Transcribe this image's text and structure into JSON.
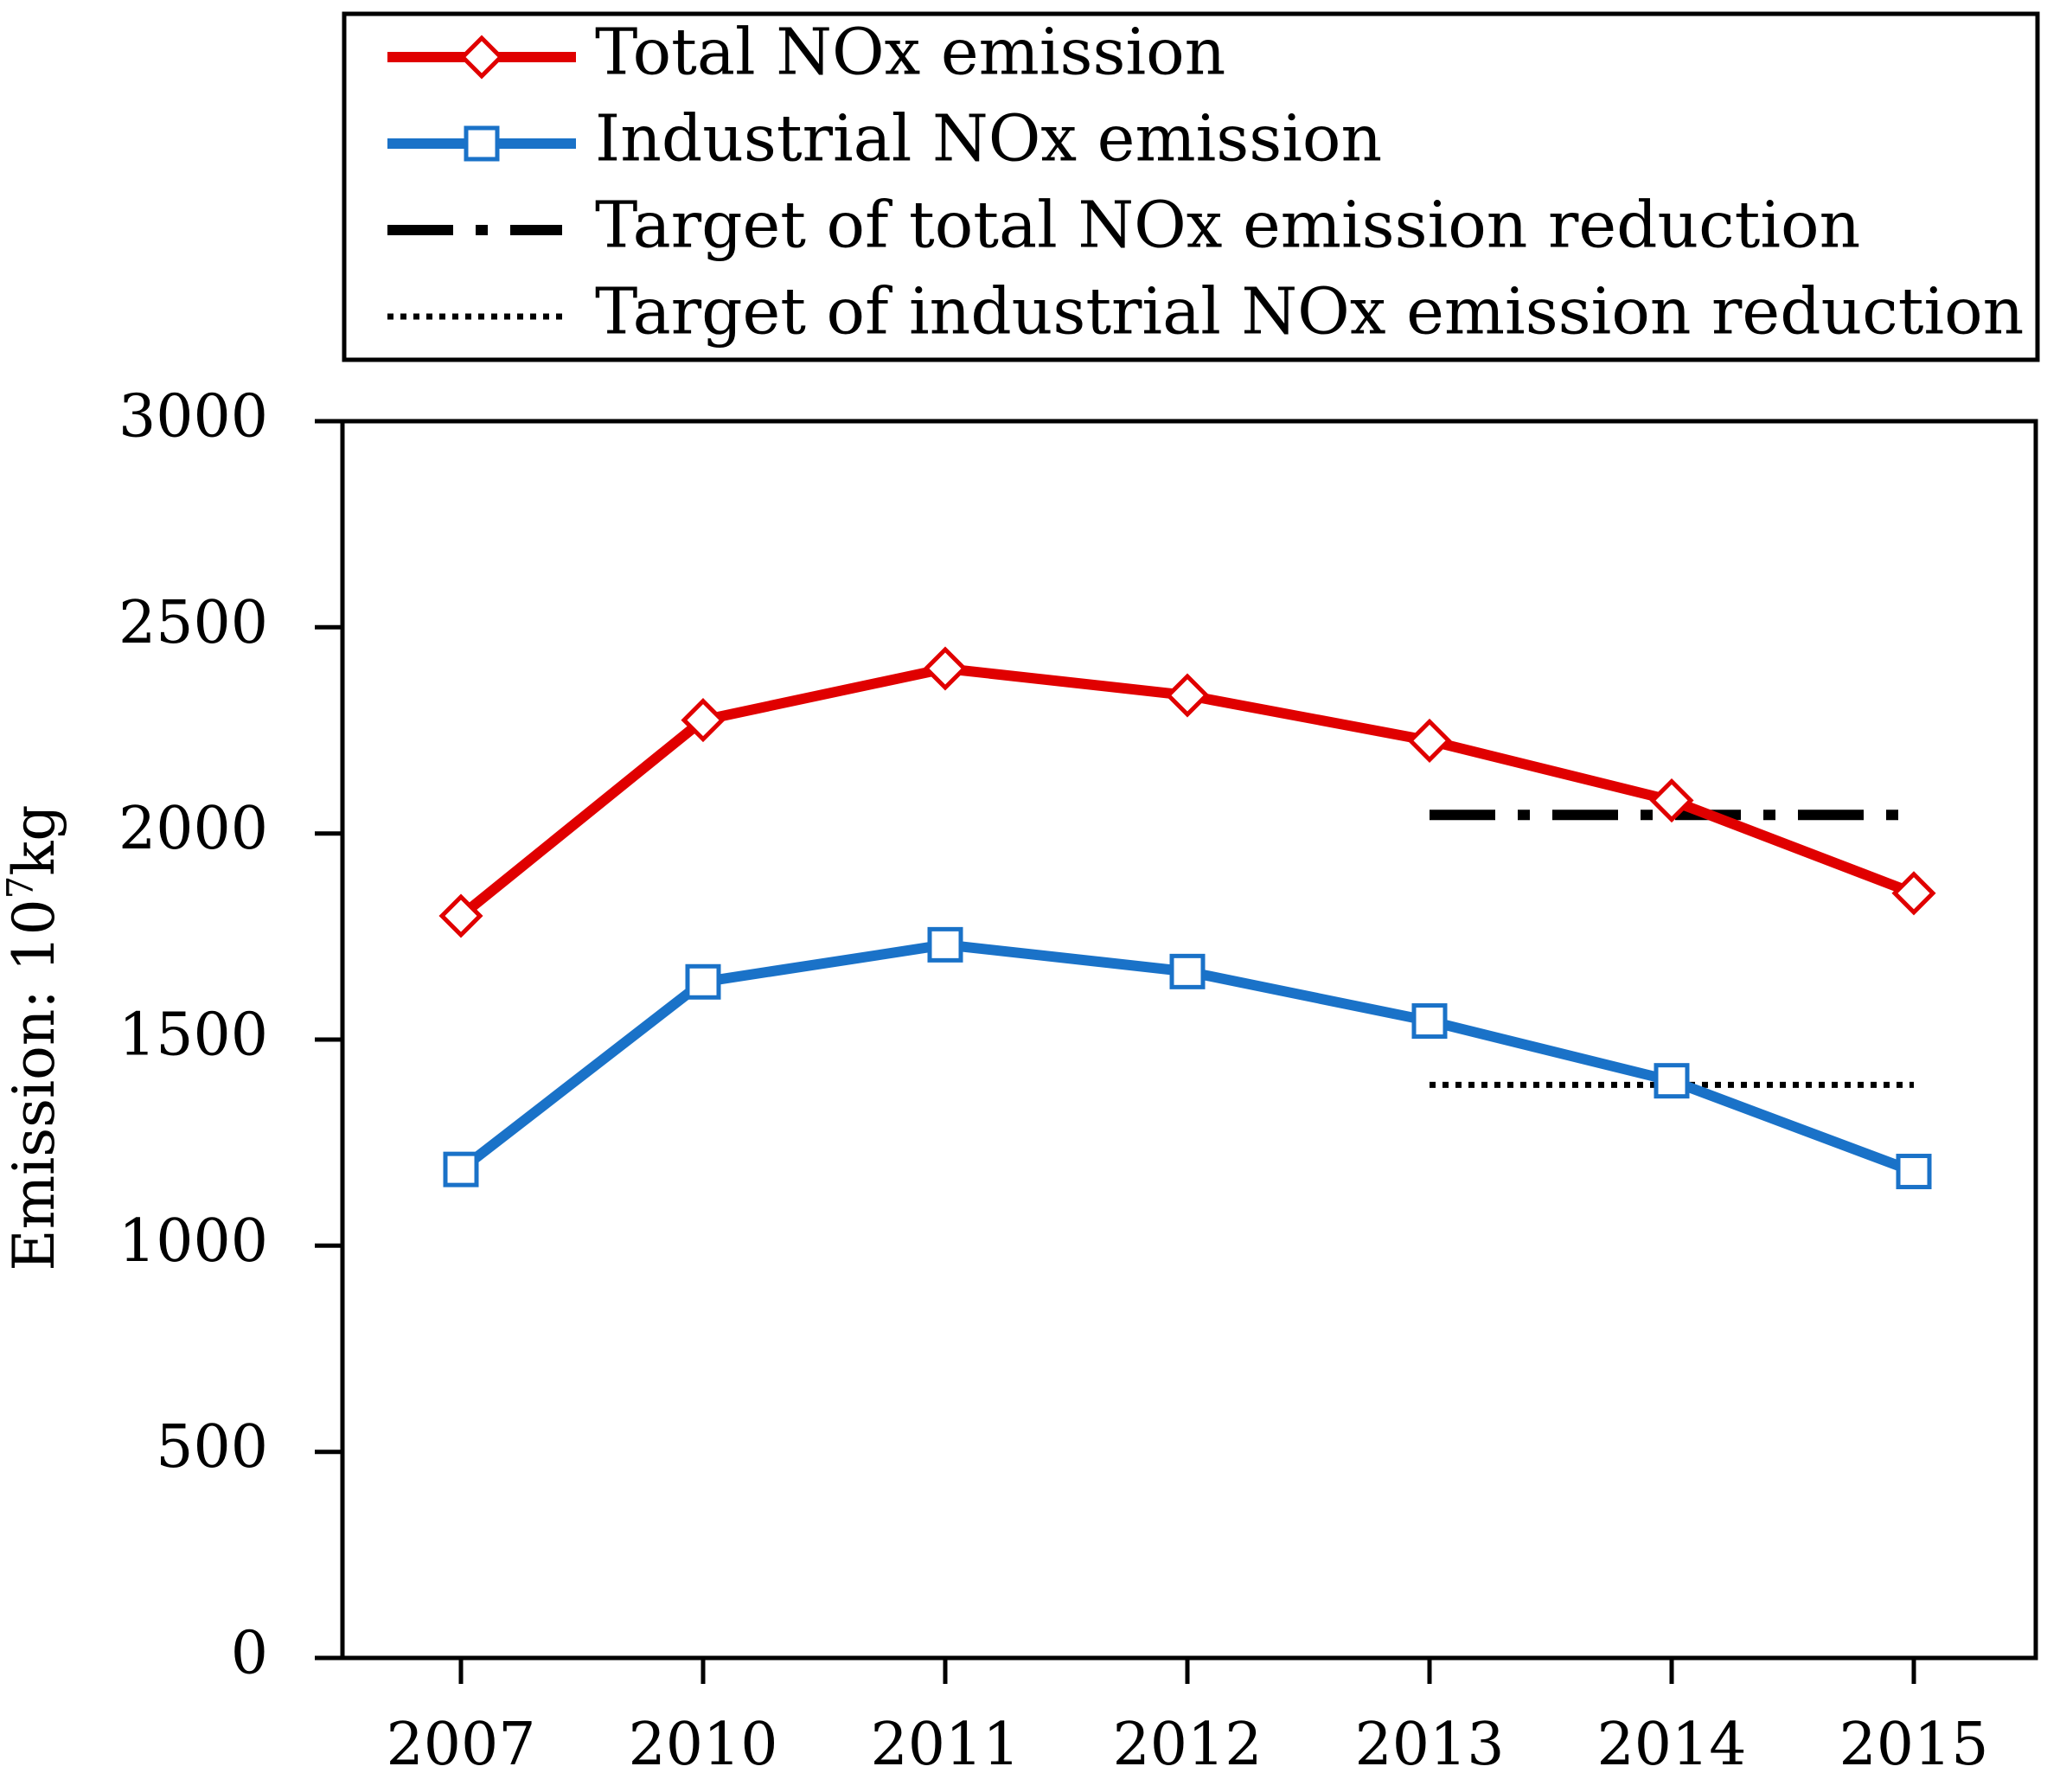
{
  "chart_data": {
    "type": "line",
    "title": "",
    "xlabel": "",
    "ylabel": "Emission: 10",
    "ylabel_superscript": "7",
    "ylabel_unit": "kg",
    "categories": [
      "2007",
      "2010",
      "2011",
      "2012",
      "2013",
      "2014",
      "2015"
    ],
    "ylim": [
      0,
      3000
    ],
    "yticks": [
      "0",
      "500",
      "1000",
      "1500",
      "2000",
      "2500",
      "3000"
    ],
    "grid": false,
    "legend_position": "top",
    "series": [
      {
        "name": "Total NOx emission",
        "color": "#e00000",
        "marker": "diamond",
        "values": [
          1800,
          2275,
          2400,
          2335,
          2225,
          2080,
          1855
        ]
      },
      {
        "name": "Industrial NOx emission",
        "color": "#1a72c8",
        "marker": "square",
        "values": [
          1185,
          1640,
          1730,
          1665,
          1545,
          1400,
          1180
        ]
      }
    ],
    "targets": [
      {
        "name": "Target of total NOx emission reduction",
        "style": "dash-dot",
        "value": 2045,
        "from": "2013",
        "to": "2015"
      },
      {
        "name": "Target of industrial NOx emission reduction",
        "style": "dotted",
        "value": 1390,
        "from": "2013",
        "to": "2015"
      }
    ]
  }
}
